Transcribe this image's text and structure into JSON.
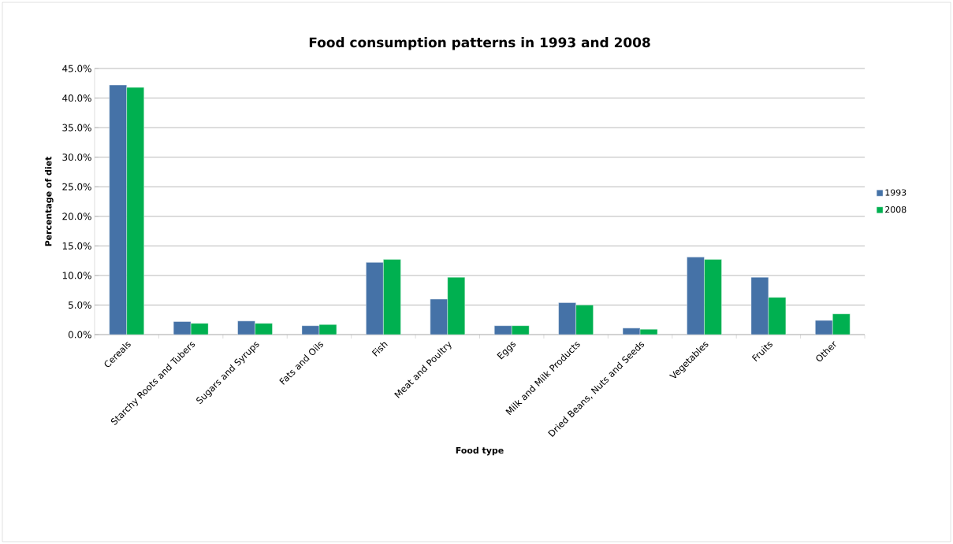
{
  "chart_data": {
    "type": "bar",
    "title": "Food consumption patterns in 1993 and 2008",
    "xlabel": "Food type",
    "ylabel": "Percentage of diet",
    "categories": [
      "Cereals",
      "Starchy Roots and Tubers",
      "Sugars and Syrups",
      "Fats and Oils",
      "Fish",
      "Meat and Poultry",
      "Eggs",
      "Milk and Milk Products",
      "Dried Beans, Nuts and Seeds",
      "Vegetables",
      "Fruits",
      "Other"
    ],
    "series": [
      {
        "name": "1993",
        "color": "#4572a7",
        "values": [
          42.2,
          2.2,
          2.3,
          1.5,
          12.2,
          6.0,
          1.5,
          5.4,
          1.1,
          13.1,
          9.7,
          2.4
        ]
      },
      {
        "name": "2008",
        "color": "#00b050",
        "values": [
          41.8,
          1.9,
          1.9,
          1.7,
          12.7,
          9.7,
          1.5,
          5.0,
          0.9,
          12.7,
          6.3,
          3.5
        ]
      }
    ],
    "ylim": [
      0,
      45
    ],
    "yticks": [
      {
        "value": 0,
        "label": "0.0%"
      },
      {
        "value": 5,
        "label": "5.0%"
      },
      {
        "value": 10,
        "label": "10.0%"
      },
      {
        "value": 15,
        "label": "15.0%"
      },
      {
        "value": 20,
        "label": "20.0%"
      },
      {
        "value": 25,
        "label": "25.0%"
      },
      {
        "value": 30,
        "label": "30.0%"
      },
      {
        "value": 35,
        "label": "35.0%"
      },
      {
        "value": 40,
        "label": "40.0%"
      },
      {
        "value": 45,
        "label": "45.0%"
      }
    ],
    "grid": "y",
    "legend": "right"
  }
}
